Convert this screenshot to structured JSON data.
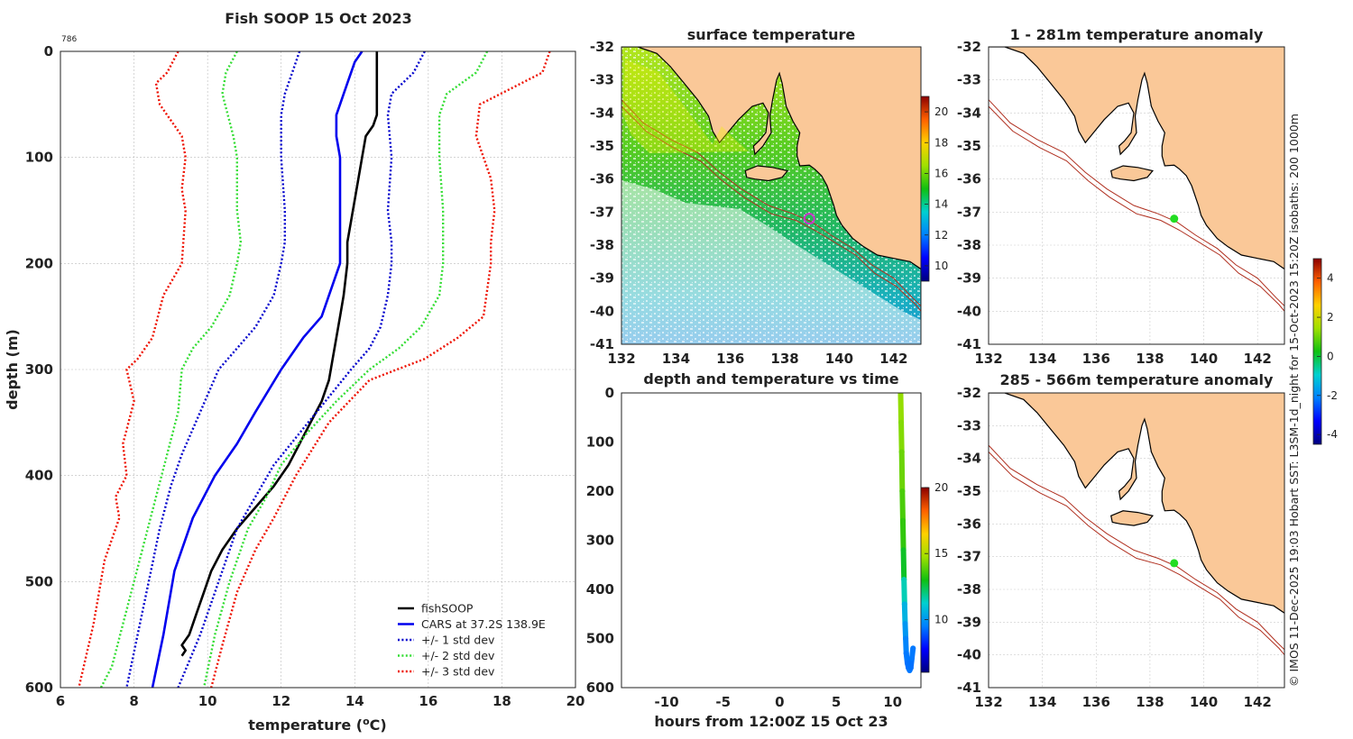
{
  "figure": {
    "title": "Fish SOOP 15 Oct 2023",
    "small_label": "786",
    "credit": "© IMOS 11-Dec-2025 19:03 Hobart SST: L3SM-1d_night for 15-Oct-2023 15:20Z isobaths: 200  1000m"
  },
  "colors": {
    "land": "#fac898",
    "fishsoop": "#000000",
    "cars": "#0000ee",
    "std1": "#0000cc",
    "std2": "#33dd33",
    "std3": "#ee1100",
    "isobath": "#b03020",
    "station_marker": "#22dd22",
    "sst_marker": "#cc33cc"
  },
  "chart_data": [
    {
      "id": "profile",
      "type": "line",
      "title": "Fish SOOP 15 Oct 2023",
      "xlabel": "temperature (",
      "xlabel_sup": "o",
      "xlabel_end": "C)",
      "ylabel": "depth (m)",
      "xlim": [
        6,
        20
      ],
      "ylim": [
        0,
        600
      ],
      "y_inverted": true,
      "xticks": [
        6,
        8,
        10,
        12,
        14,
        16,
        18,
        20
      ],
      "yticks": [
        0,
        100,
        200,
        300,
        400,
        500,
        600
      ],
      "grid": true,
      "legend_position": "bottom-right",
      "series": [
        {
          "name": "fishSOOP",
          "style": "solid",
          "color": "#000000",
          "x": [
            14.6,
            14.6,
            14.6,
            14.6,
            14.5,
            14.3,
            14.2,
            14.0,
            13.8,
            13.8,
            13.7,
            13.6,
            13.5,
            13.4,
            13.3,
            13.1,
            12.8,
            12.5,
            12.2,
            11.8,
            11.3,
            10.8,
            10.4,
            10.1,
            9.9,
            9.7,
            9.5,
            9.3,
            9.4,
            9.3
          ],
          "y": [
            0,
            20,
            40,
            60,
            70,
            80,
            100,
            140,
            180,
            200,
            230,
            250,
            270,
            290,
            310,
            330,
            350,
            370,
            390,
            410,
            430,
            450,
            470,
            490,
            510,
            530,
            550,
            560,
            565,
            570
          ]
        },
        {
          "name": "CARS at 37.2S 138.9E",
          "style": "solid",
          "color": "#0000ee",
          "x": [
            14.2,
            14.0,
            13.8,
            13.6,
            13.5,
            13.5,
            13.6,
            13.6,
            13.6,
            13.6,
            13.4,
            13.1,
            12.6,
            12.0,
            11.3,
            10.8,
            10.2,
            9.6,
            9.1,
            8.8,
            8.5
          ],
          "y": [
            0,
            10,
            30,
            50,
            60,
            80,
            100,
            150,
            180,
            200,
            220,
            250,
            270,
            300,
            340,
            370,
            400,
            440,
            490,
            550,
            600
          ]
        },
        {
          "name": "+/- 1 std dev",
          "style": "dotted",
          "color": "#0000cc",
          "x": [
            12.5,
            12.3,
            12.1,
            12.0,
            12.0,
            12.1,
            12.1,
            12.0,
            11.8,
            11.3,
            10.8,
            10.3,
            9.8,
            9.3,
            9.0,
            8.7,
            8.4,
            8.1,
            7.8
          ],
          "y": [
            0,
            20,
            40,
            60,
            100,
            150,
            180,
            200,
            230,
            260,
            280,
            300,
            340,
            380,
            410,
            450,
            500,
            550,
            600
          ]
        },
        {
          "name": "+/- 1 std dev upper",
          "style": "dotted",
          "color": "#0000cc",
          "in_legend": false,
          "x": [
            15.9,
            15.6,
            15.0,
            14.9,
            15.0,
            14.9,
            15.0,
            15.0,
            14.9,
            14.7,
            14.4,
            13.9,
            13.2,
            12.5,
            11.8,
            11.3,
            10.8,
            10.3,
            9.8,
            9.2
          ],
          "y": [
            0,
            20,
            40,
            60,
            100,
            150,
            180,
            200,
            230,
            260,
            280,
            300,
            330,
            360,
            390,
            420,
            450,
            500,
            550,
            600
          ]
        },
        {
          "name": "+/- 2 std dev",
          "style": "dotted",
          "color": "#33dd33",
          "x": [
            10.8,
            10.5,
            10.4,
            10.7,
            10.8,
            10.8,
            10.9,
            10.8,
            10.6,
            10.1,
            9.6,
            9.3,
            9.2,
            8.9,
            8.6,
            8.3,
            8.0,
            7.7,
            7.4,
            7.1
          ],
          "y": [
            0,
            20,
            40,
            80,
            100,
            150,
            180,
            200,
            230,
            260,
            280,
            300,
            340,
            380,
            420,
            460,
            500,
            540,
            580,
            600
          ]
        },
        {
          "name": "+/- 2 std dev upper",
          "style": "dotted",
          "color": "#33dd33",
          "in_legend": false,
          "x": [
            17.6,
            17.3,
            16.5,
            16.3,
            16.3,
            16.4,
            16.4,
            16.4,
            16.3,
            15.8,
            15.2,
            14.4,
            13.5,
            12.7,
            12.0,
            11.6,
            11.1,
            10.6,
            10.2,
            9.9
          ],
          "y": [
            0,
            20,
            40,
            60,
            100,
            150,
            180,
            200,
            230,
            260,
            280,
            300,
            330,
            360,
            390,
            420,
            450,
            500,
            550,
            600
          ]
        },
        {
          "name": "+/- 3 std dev",
          "style": "dotted",
          "color": "#ee1100",
          "x": [
            9.2,
            8.9,
            8.6,
            8.7,
            9.3,
            9.4,
            9.3,
            9.4,
            9.3,
            8.8,
            8.5,
            8.1,
            7.8,
            8.0,
            7.7,
            7.8,
            7.5,
            7.6,
            7.2,
            6.9,
            6.5
          ],
          "y": [
            0,
            20,
            30,
            50,
            80,
            100,
            130,
            150,
            200,
            230,
            270,
            290,
            300,
            330,
            370,
            400,
            420,
            440,
            480,
            540,
            600
          ]
        },
        {
          "name": "+/- 3 std dev upper",
          "style": "dotted",
          "color": "#ee1100",
          "in_legend": false,
          "x": [
            19.3,
            19.1,
            17.4,
            17.3,
            17.7,
            17.8,
            17.7,
            17.7,
            17.5,
            16.8,
            15.9,
            14.4,
            13.3,
            12.4,
            11.8,
            11.3,
            10.8,
            10.4,
            10.1
          ],
          "y": [
            0,
            20,
            50,
            80,
            120,
            150,
            180,
            200,
            250,
            270,
            290,
            310,
            350,
            400,
            440,
            470,
            510,
            560,
            600
          ]
        }
      ]
    },
    {
      "id": "sst_map",
      "type": "heatmap",
      "title": "surface temperature",
      "xlim": [
        132,
        143
      ],
      "ylim": [
        -41,
        -32
      ],
      "xticks": [
        132,
        134,
        136,
        138,
        140,
        142
      ],
      "yticks": [
        -32,
        -33,
        -34,
        -35,
        -36,
        -37,
        -38,
        -39,
        -40,
        -41
      ],
      "colorbar": {
        "min": 9,
        "max": 21,
        "ticks": [
          10,
          12,
          14,
          16,
          18,
          20
        ]
      },
      "station": {
        "lon": 138.9,
        "lat": -37.2
      }
    },
    {
      "id": "depth_time",
      "type": "scatter",
      "title": "depth and temperature vs time",
      "xlabel": "hours from 12:00Z 15 Oct 23",
      "xlim": [
        -14,
        12.5
      ],
      "ylim": [
        0,
        600
      ],
      "y_inverted": true,
      "xticks": [
        -10,
        -5,
        0,
        5,
        10
      ],
      "yticks": [
        0,
        100,
        200,
        300,
        400,
        500,
        600
      ],
      "colorbar": {
        "min": 6,
        "max": 20,
        "ticks": [
          10,
          15,
          20
        ]
      },
      "points": {
        "hours": [
          10.7,
          10.75,
          10.8,
          10.85,
          10.9,
          10.95,
          11.0,
          11.05,
          11.1,
          11.15,
          11.2,
          11.3,
          11.4,
          11.5,
          11.6,
          11.7,
          11.8
        ],
        "depth": [
          0,
          60,
          120,
          200,
          260,
          320,
          380,
          430,
          470,
          500,
          530,
          550,
          560,
          565,
          560,
          540,
          520
        ],
        "temp": [
          14.6,
          14.4,
          14.1,
          13.7,
          13.4,
          12.8,
          11.5,
          10.6,
          10.0,
          9.6,
          9.4,
          9.3,
          9.3,
          9.4,
          9.3,
          9.4,
          9.4
        ]
      }
    },
    {
      "id": "anomaly_upper",
      "type": "heatmap",
      "title": "1 - 281m temperature anomaly",
      "xlim": [
        132,
        143
      ],
      "ylim": [
        -41,
        -32
      ],
      "xticks": [
        132,
        134,
        136,
        138,
        140,
        142
      ],
      "yticks": [
        -32,
        -33,
        -34,
        -35,
        -36,
        -37,
        -38,
        -39,
        -40,
        -41
      ],
      "station": {
        "lon": 138.9,
        "lat": -37.2
      }
    },
    {
      "id": "anomaly_lower",
      "type": "heatmap",
      "title": "285 - 566m temperature anomaly",
      "xlim": [
        132,
        143
      ],
      "ylim": [
        -41,
        -32
      ],
      "xticks": [
        132,
        134,
        136,
        138,
        140,
        142
      ],
      "yticks": [
        -32,
        -33,
        -34,
        -35,
        -36,
        -37,
        -38,
        -39,
        -40,
        -41
      ],
      "station": {
        "lon": 138.9,
        "lat": -37.2
      }
    },
    {
      "id": "anomaly_colorbar",
      "type": "heatmap",
      "colorbar": {
        "min": -4.5,
        "max": 5,
        "ticks": [
          4,
          2,
          0,
          -2,
          -4
        ]
      }
    }
  ]
}
